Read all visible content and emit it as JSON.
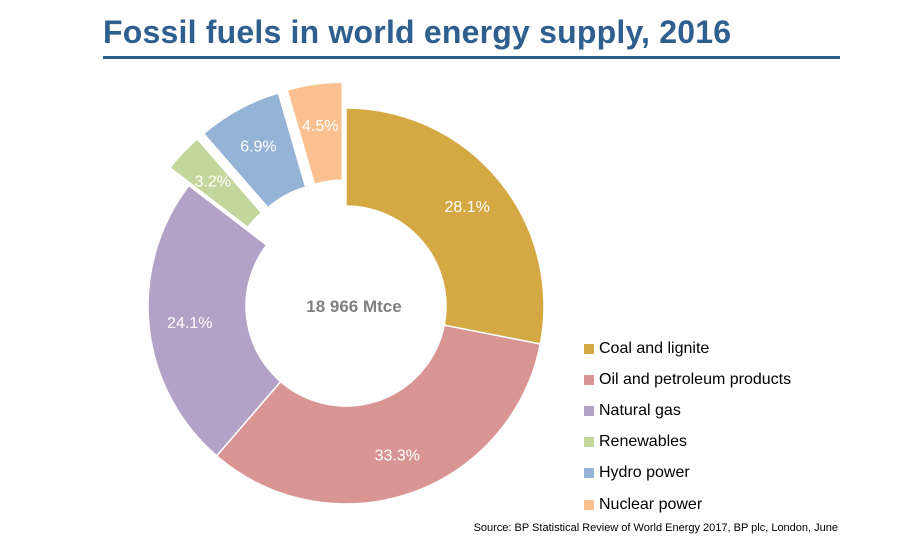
{
  "header": {
    "title": "Fossil fuels in world energy supply, 2016"
  },
  "chart_data": {
    "type": "pie",
    "center_label": "18 966 Mtce",
    "slices": [
      {
        "label": "Coal and lignite",
        "value": 28.1,
        "value_label": "28.1%",
        "color": "#d4a843",
        "exploded": false
      },
      {
        "label": "Oil and petroleum products",
        "value": 33.3,
        "value_label": "33.3%",
        "color": "#d99594",
        "exploded": false
      },
      {
        "label": "Natural gas",
        "value": 24.1,
        "value_label": "24.1%",
        "color": "#b2a2c7",
        "exploded": false
      },
      {
        "label": "Renewables",
        "value": 3.2,
        "value_label": "3.2%",
        "color": "#c3d69b",
        "exploded": true
      },
      {
        "label": "Hydro power",
        "value": 6.9,
        "value_label": "6.9%",
        "color": "#95b3d7",
        "exploded": true
      },
      {
        "label": "Nuclear power",
        "value": 4.5,
        "value_label": "4.5%",
        "color": "#fac090",
        "exploded": true
      }
    ],
    "legend_placement": "bottom-right"
  },
  "footer": {
    "source": "Source:  BP Statistical Review of World Energy 2017, BP plc, London, June"
  }
}
